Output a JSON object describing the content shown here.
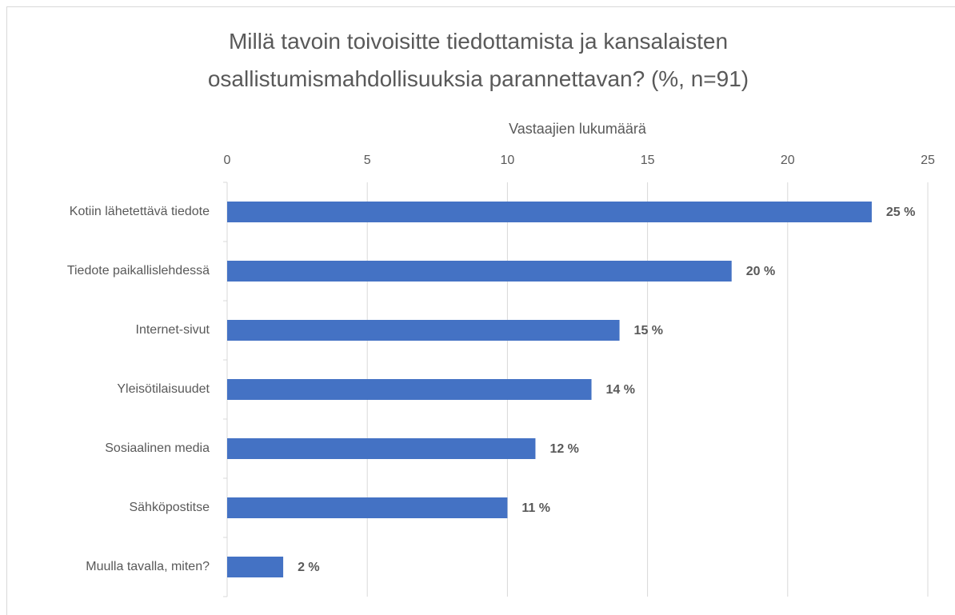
{
  "chart_data": {
    "type": "bar",
    "orientation": "horizontal",
    "title": "Millä tavoin toivoisitte tiedottamista ja kansalaisten osallistumismahdollisuuksia parannettavan? (%, n=91)",
    "x_label": "Vastaajien lukumäärä",
    "categories": [
      "Kotiin lähetettävä tiedote",
      "Tiedote paikallislehdessä",
      "Internet-sivut",
      "Yleisötilaisuudet",
      "Sosiaalinen media",
      "Sähköpostitse",
      "Muulla tavalla, miten?"
    ],
    "values": [
      23,
      18,
      14,
      13,
      11,
      10,
      2
    ],
    "value_labels": [
      "25 %",
      "20 %",
      "15 %",
      "14 %",
      "12 %",
      "11 %",
      "2 %"
    ],
    "color": "#4472c4",
    "xlim": [
      0,
      25
    ],
    "xticks": [
      0,
      5,
      10,
      15,
      20,
      25
    ],
    "grid": true
  }
}
